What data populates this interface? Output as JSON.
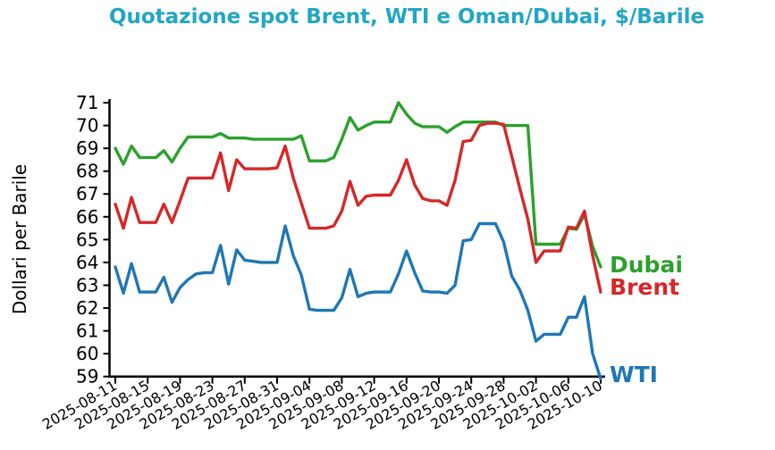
{
  "title": "Quotazione spot Brent, WTI e Oman/Dubai, $/Barile",
  "title_color": "#22a6c4",
  "ylabel": "Dollari per Barile",
  "axis_color": "#000000",
  "chart_data": {
    "type": "line",
    "x_start_date": "2025-08-11",
    "x_end_date": "2025-10-10",
    "x_points": 61,
    "x_tick_labels": [
      "2025-08-11",
      "2025-08-15",
      "2025-08-19",
      "2025-08-23",
      "2025-08-27",
      "2025-08-31",
      "2025-09-04",
      "2025-09-08",
      "2025-09-12",
      "2025-09-16",
      "2025-09-20",
      "2025-09-24",
      "2025-09-28",
      "2025-10-02",
      "2025-10-06",
      "2025-10-10"
    ],
    "y_ticks": [
      59,
      60,
      61,
      62,
      63,
      64,
      65,
      66,
      67,
      68,
      69,
      70,
      71
    ],
    "ylim": [
      59,
      71
    ],
    "grid": false,
    "legend_position": "line-end-labels",
    "series": [
      {
        "name": "Dubai",
        "color": "#2ca02c",
        "values": [
          69.0,
          68.3,
          69.1,
          68.6,
          68.6,
          68.6,
          68.9,
          68.4,
          69.0,
          69.5,
          69.5,
          69.5,
          69.5,
          69.65,
          69.45,
          69.45,
          69.45,
          69.4,
          69.4,
          69.4,
          69.4,
          69.4,
          69.4,
          69.55,
          68.45,
          68.45,
          68.45,
          68.6,
          69.4,
          70.35,
          69.8,
          70.0,
          70.15,
          70.15,
          70.15,
          71.0,
          70.5,
          70.1,
          69.95,
          69.95,
          69.95,
          69.7,
          69.95,
          70.15,
          70.15,
          70.15,
          70.15,
          70.15,
          70.0,
          70.0,
          70.0,
          70.0,
          64.8,
          64.8,
          64.8,
          64.8,
          65.5,
          65.45,
          66.1,
          64.7,
          63.8
        ]
      },
      {
        "name": "Brent",
        "color": "#d62728",
        "values": [
          66.55,
          65.5,
          66.85,
          65.75,
          65.75,
          65.75,
          66.55,
          65.75,
          66.7,
          67.7,
          67.7,
          67.7,
          67.7,
          68.8,
          67.15,
          68.5,
          68.1,
          68.1,
          68.1,
          68.1,
          68.15,
          69.1,
          67.7,
          66.6,
          65.5,
          65.5,
          65.5,
          65.6,
          66.25,
          67.55,
          66.5,
          66.9,
          66.95,
          66.95,
          66.95,
          67.6,
          68.5,
          67.4,
          66.8,
          66.7,
          66.7,
          66.5,
          67.6,
          69.3,
          69.35,
          70.0,
          70.1,
          70.1,
          70.05,
          68.65,
          67.25,
          65.9,
          64.0,
          64.5,
          64.5,
          64.5,
          65.55,
          65.5,
          66.25,
          64.3,
          62.7
        ]
      },
      {
        "name": "WTI",
        "color": "#1f77b4",
        "values": [
          63.8,
          62.65,
          63.95,
          62.7,
          62.7,
          62.7,
          63.35,
          62.25,
          62.9,
          63.25,
          63.5,
          63.55,
          63.55,
          64.75,
          63.05,
          64.55,
          64.1,
          64.05,
          64.0,
          64.0,
          64.0,
          65.6,
          64.3,
          63.45,
          61.95,
          61.9,
          61.9,
          61.9,
          62.45,
          63.7,
          62.5,
          62.65,
          62.7,
          62.7,
          62.7,
          63.5,
          64.5,
          63.55,
          62.75,
          62.7,
          62.7,
          62.65,
          63.0,
          64.95,
          65.0,
          65.7,
          65.7,
          65.7,
          64.9,
          63.4,
          62.8,
          61.9,
          60.55,
          60.85,
          60.85,
          60.85,
          61.6,
          61.6,
          62.5,
          60.0,
          58.9
        ]
      }
    ]
  }
}
